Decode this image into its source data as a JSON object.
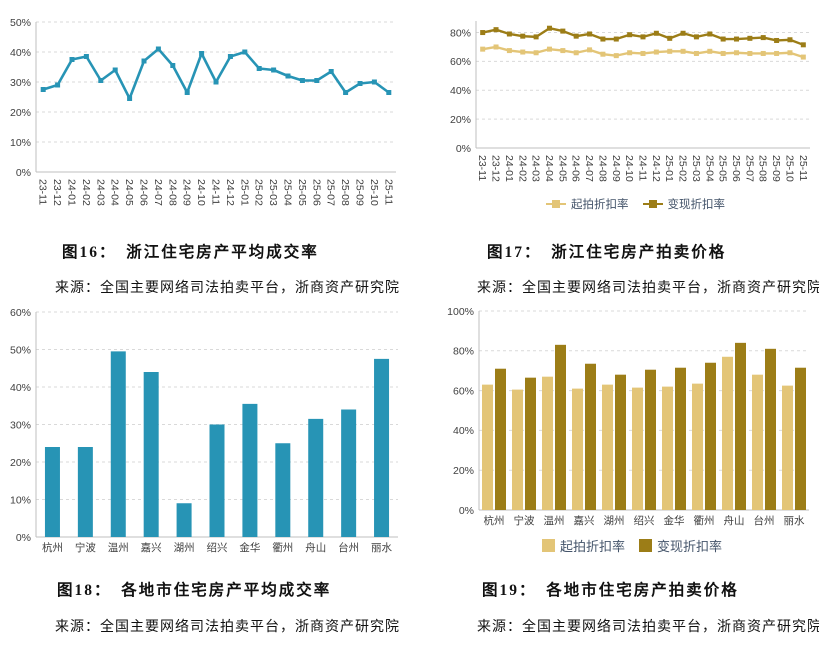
{
  "page": {
    "background": "#ffffff"
  },
  "colors": {
    "teal": "#2794B5",
    "gold_light": "#E3C577",
    "gold_dark": "#9C7D17",
    "gridline": "#D9D9D9",
    "axis_line": "#BFBFBF",
    "tick_text": "#404040",
    "legend_text": "#44546A",
    "caption_text": "#111111"
  },
  "figures": {
    "fig16": {
      "title": "图16：　浙江住宅房产平均成交率",
      "source": "来源：全国主要网络司法拍卖平台，浙商资产研究院"
    },
    "fig17": {
      "title": "图17：　浙江住宅房产拍卖价格",
      "source": "来源：全国主要网络司法拍卖平台，浙商资产研究院"
    },
    "fig18": {
      "title": "图18：　各地市住宅房产平均成交率",
      "source": "来源：全国主要网络司法拍卖平台，浙商资产研究院"
    },
    "fig19": {
      "title": "图19：　各地市住宅房产拍卖价格",
      "source": "来源：全国主要网络司法拍卖平台，浙商资产研究院"
    }
  },
  "chart_data": [
    {
      "id": "chart16",
      "type": "line",
      "title": "浙江住宅房产平均成交率",
      "x": [
        "23-11",
        "23-12",
        "24-01",
        "24-02",
        "24-03",
        "24-04",
        "24-05",
        "24-06",
        "24-07",
        "24-08",
        "24-09",
        "24-10",
        "24-11",
        "24-12",
        "25-01",
        "25-02",
        "25-03",
        "25-04",
        "25-05",
        "25-06",
        "25-07",
        "25-08",
        "25-09",
        "25-10",
        "25-11"
      ],
      "series": [
        {
          "name": "平均成交率",
          "color": "#2794B5",
          "values": [
            27.5,
            29,
            37.5,
            38.5,
            30.5,
            34,
            24.5,
            37,
            41,
            35.5,
            26.5,
            39.5,
            30,
            38.5,
            40,
            34.5,
            34,
            32,
            30.5,
            30.5,
            33.5,
            26.5,
            29.5,
            30,
            26.5
          ]
        }
      ],
      "ylim": [
        0,
        50
      ],
      "ytick_step": 10,
      "ytick_max": 50,
      "grid": true,
      "legend_position": "none",
      "unit": "%"
    },
    {
      "id": "chart17",
      "type": "line",
      "title": "浙江住宅房产拍卖价格",
      "x": [
        "23-11",
        "23-12",
        "24-01",
        "24-02",
        "24-03",
        "24-04",
        "24-05",
        "24-06",
        "24-07",
        "24-08",
        "24-09",
        "24-10",
        "24-11",
        "24-12",
        "25-01",
        "25-02",
        "25-03",
        "25-04",
        "25-05",
        "25-06",
        "25-07",
        "25-08",
        "25-09",
        "25-10",
        "25-11"
      ],
      "series": [
        {
          "name": "起拍折扣率",
          "color": "#E3C577",
          "values": [
            68.5,
            70,
            67.5,
            66.5,
            66,
            68.5,
            67.5,
            66,
            68,
            65,
            64,
            66,
            65.5,
            66.5,
            67,
            67,
            65.5,
            67,
            65.5,
            66,
            65.5,
            65.5,
            65.5,
            66,
            63
          ]
        },
        {
          "name": "变现折扣率",
          "color": "#9C7D17",
          "values": [
            80,
            82,
            79,
            77.5,
            77,
            83,
            81,
            77.5,
            79,
            75.5,
            75.5,
            78.5,
            77,
            79.5,
            76,
            79.5,
            77,
            79,
            75.5,
            75.5,
            76,
            76.5,
            74.5,
            75,
            71.5
          ]
        }
      ],
      "ylim": [
        0,
        88
      ],
      "ytick_step": 20,
      "ytick_max": 80,
      "grid": true,
      "legend_position": "bottom",
      "unit": "%"
    },
    {
      "id": "chart18",
      "type": "bar",
      "title": "各地市住宅房产平均成交率",
      "categories": [
        "杭州",
        "宁波",
        "温州",
        "嘉兴",
        "湖州",
        "绍兴",
        "金华",
        "衢州",
        "舟山",
        "台州",
        "丽水"
      ],
      "series": [
        {
          "name": "平均成交率",
          "color": "#2794B5",
          "values": [
            24,
            24,
            49.5,
            44,
            9,
            30,
            35.5,
            25,
            31.5,
            34,
            47.5
          ]
        }
      ],
      "ylim": [
        0,
        60
      ],
      "ytick_step": 10,
      "ytick_max": 60,
      "grid": true,
      "legend_position": "none",
      "unit": "%"
    },
    {
      "id": "chart19",
      "type": "bar",
      "title": "各地市住宅房产拍卖价格",
      "categories": [
        "杭州",
        "宁波",
        "温州",
        "嘉兴",
        "湖州",
        "绍兴",
        "金华",
        "衢州",
        "舟山",
        "台州",
        "丽水"
      ],
      "series": [
        {
          "name": "起拍折扣率",
          "color": "#E3C577",
          "values": [
            63,
            60.5,
            67,
            61,
            63,
            61.5,
            62,
            63.5,
            77,
            68,
            62.5
          ]
        },
        {
          "name": "变现折扣率",
          "color": "#9C7D17",
          "values": [
            71,
            66.5,
            83,
            73.5,
            68,
            70.5,
            71.5,
            74,
            84,
            81,
            71.5
          ]
        }
      ],
      "ylim": [
        0,
        100
      ],
      "ytick_step": 20,
      "ytick_max": 100,
      "grid": true,
      "legend_position": "bottom",
      "unit": "%"
    }
  ]
}
